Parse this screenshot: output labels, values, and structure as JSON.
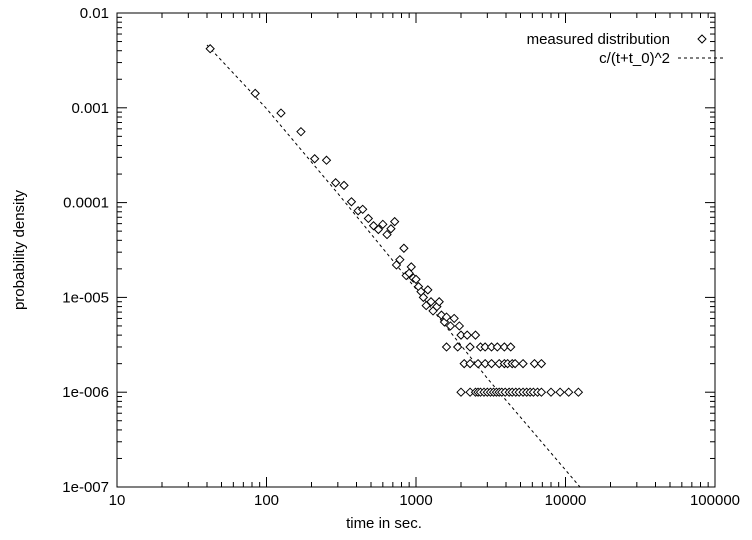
{
  "chart_data": {
    "type": "scatter",
    "xlabel": "time in sec.",
    "ylabel": "probability density",
    "xscale": "log",
    "yscale": "log",
    "xlim": [
      10,
      100000
    ],
    "ylim": [
      1e-07,
      0.01
    ],
    "x_ticks": [
      10,
      100,
      1000,
      10000,
      100000
    ],
    "x_tick_labels": [
      "10",
      "100",
      "1000",
      "10000",
      "100000"
    ],
    "y_ticks": [
      1e-07,
      1e-06,
      1e-05,
      0.0001,
      0.001,
      0.01
    ],
    "y_tick_labels": [
      "1e-007",
      "1e-006",
      "1e-005",
      "0.0001",
      "0.001",
      "0.01"
    ],
    "grid": false,
    "legend_position": "top-right",
    "series": [
      {
        "name": "measured distribution",
        "kind": "points",
        "marker": "diamond",
        "points": [
          [
            42,
            0.0042
          ],
          [
            84,
            0.00142
          ],
          [
            125,
            0.00088
          ],
          [
            170,
            0.00056
          ],
          [
            210,
            0.00029
          ],
          [
            252,
            0.00028
          ],
          [
            290,
            0.000162
          ],
          [
            330,
            0.000152
          ],
          [
            370,
            0.000102
          ],
          [
            410,
            8.2e-05
          ],
          [
            440,
            8.5e-05
          ],
          [
            480,
            6.8e-05
          ],
          [
            520,
            5.7e-05
          ],
          [
            560,
            5.2e-05
          ],
          [
            600,
            5.9e-05
          ],
          [
            640,
            4.6e-05
          ],
          [
            680,
            5.3e-05
          ],
          [
            720,
            6.3e-05
          ],
          [
            740,
            2.2e-05
          ],
          [
            780,
            2.5e-05
          ],
          [
            830,
            3.3e-05
          ],
          [
            860,
            1.7e-05
          ],
          [
            900,
            1.8e-05
          ],
          [
            930,
            2.1e-05
          ],
          [
            960,
            1.6e-05
          ],
          [
            1000,
            1.55e-05
          ],
          [
            1040,
            1.3e-05
          ],
          [
            1080,
            1.15e-05
          ],
          [
            1120,
            1e-05
          ],
          [
            1170,
            8.2e-06
          ],
          [
            1200,
            1.2e-05
          ],
          [
            1260,
            9e-06
          ],
          [
            1300,
            7.2e-06
          ],
          [
            1380,
            8e-06
          ],
          [
            1430,
            9e-06
          ],
          [
            1480,
            6.5e-06
          ],
          [
            1550,
            5.5e-06
          ],
          [
            1600,
            6.2e-06
          ],
          [
            1700,
            5e-06
          ],
          [
            1800,
            6e-06
          ],
          [
            1950,
            5e-06
          ],
          [
            2000,
            4e-06
          ],
          [
            2200,
            4e-06
          ],
          [
            2500,
            4e-06
          ],
          [
            1600,
            3e-06
          ],
          [
            1900,
            3e-06
          ],
          [
            2300,
            3e-06
          ],
          [
            2700,
            3e-06
          ],
          [
            2900,
            3e-06
          ],
          [
            3200,
            3e-06
          ],
          [
            3500,
            3e-06
          ],
          [
            3900,
            3e-06
          ],
          [
            4300,
            3e-06
          ],
          [
            2100,
            2e-06
          ],
          [
            2300,
            2e-06
          ],
          [
            2600,
            2e-06
          ],
          [
            2900,
            2e-06
          ],
          [
            3200,
            2e-06
          ],
          [
            3600,
            2e-06
          ],
          [
            3900,
            2e-06
          ],
          [
            4100,
            2e-06
          ],
          [
            4400,
            2e-06
          ],
          [
            4600,
            2e-06
          ],
          [
            5200,
            2e-06
          ],
          [
            6200,
            2e-06
          ],
          [
            6900,
            2e-06
          ],
          [
            2000,
            1e-06
          ],
          [
            2300,
            1e-06
          ],
          [
            2500,
            1e-06
          ],
          [
            2600,
            1e-06
          ],
          [
            2700,
            1e-06
          ],
          [
            2850,
            1e-06
          ],
          [
            3000,
            1e-06
          ],
          [
            3150,
            1e-06
          ],
          [
            3300,
            1e-06
          ],
          [
            3450,
            1e-06
          ],
          [
            3600,
            1e-06
          ],
          [
            3750,
            1e-06
          ],
          [
            3950,
            1e-06
          ],
          [
            4200,
            1e-06
          ],
          [
            4400,
            1e-06
          ],
          [
            4650,
            1e-06
          ],
          [
            4900,
            1e-06
          ],
          [
            5200,
            1e-06
          ],
          [
            5500,
            1e-06
          ],
          [
            5800,
            1e-06
          ],
          [
            6100,
            1e-06
          ],
          [
            6500,
            1e-06
          ],
          [
            6900,
            1e-06
          ],
          [
            8000,
            1e-06
          ],
          [
            9200,
            1e-06
          ],
          [
            10500,
            1e-06
          ],
          [
            12200,
            1e-06
          ]
        ]
      },
      {
        "name": "c/(t+t_0)^2",
        "kind": "line",
        "style": "dashed",
        "points": [
          [
            40,
            0.0046
          ],
          [
            100,
            0.00098
          ],
          [
            300,
            0.000125
          ],
          [
            1000,
            1.23e-05
          ],
          [
            3000,
            1.4e-06
          ],
          [
            12500,
            1e-07
          ]
        ]
      }
    ]
  }
}
